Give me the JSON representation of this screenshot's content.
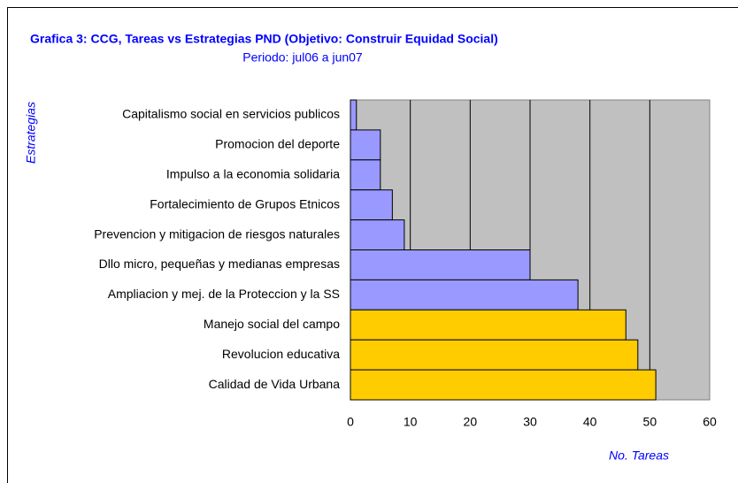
{
  "chart_data": {
    "type": "barh",
    "title": "Grafica 3: CCG, Tareas vs Estrategias PND (Objetivo: Construir Equidad Social)",
    "subtitle": "Periodo: jul06 a jun07",
    "y_label": "Estrategias",
    "x_label": "No. Tareas",
    "categories": [
      "Capitalismo social en servicios publicos",
      "Promocion del deporte",
      "Impulso a la economia solidaria",
      "Fortalecimiento de Grupos Etnicos",
      "Prevencion y mitigacion de riesgos naturales",
      "Dllo micro, pequeñas y medianas empresas",
      "Ampliacion y mej. de la Proteccion y la SS",
      "Manejo social del campo",
      "Revolucion educativa",
      "Calidad de Vida Urbana"
    ],
    "values": [
      1,
      5,
      5,
      7,
      9,
      30,
      38,
      46,
      48,
      51
    ],
    "colors": [
      "#9999ff",
      "#9999ff",
      "#9999ff",
      "#9999ff",
      "#9999ff",
      "#9999ff",
      "#9999ff",
      "#ffcc00",
      "#ffcc00",
      "#ffcc00"
    ],
    "xlim": [
      0,
      60
    ],
    "xticks": [
      0,
      10,
      20,
      30,
      40,
      50,
      60
    ],
    "grid": true
  }
}
